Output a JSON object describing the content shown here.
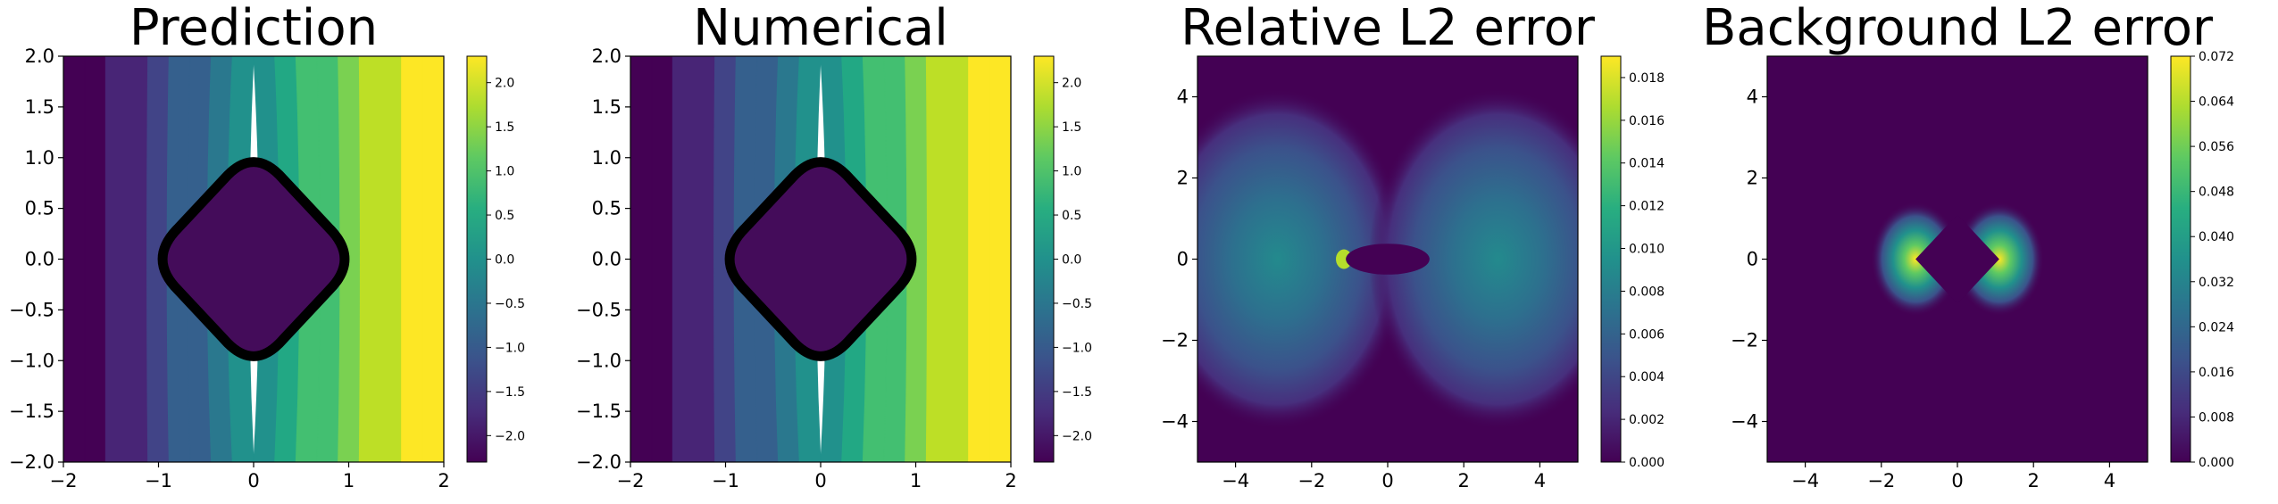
{
  "chart_data": [
    {
      "type": "heatmap",
      "title": "Prediction",
      "xlim": [
        -2,
        2
      ],
      "ylim": [
        -2,
        2
      ],
      "xticks": [
        -2,
        -1,
        0,
        1,
        2
      ],
      "yticks": [
        -2.0,
        -1.5,
        -1.0,
        -0.5,
        0.0,
        0.5,
        1.0,
        1.5,
        2.0
      ],
      "colormap": "viridis",
      "colorbar": {
        "range": [
          -2.3,
          2.3
        ],
        "ticks": [
          -2.0,
          -1.5,
          -1.0,
          -0.5,
          0.0,
          0.5,
          1.0,
          1.5,
          2.0
        ]
      },
      "field": "potential increasing left to right",
      "obstacle": {
        "shape": "rounded-diamond",
        "half_width": 1.1,
        "outline": "thick black"
      }
    },
    {
      "type": "heatmap",
      "title": "Numerical",
      "xlim": [
        -2,
        2
      ],
      "ylim": [
        -2,
        2
      ],
      "xticks": [
        -2,
        -1,
        0,
        1,
        2
      ],
      "yticks": [
        -2.0,
        -1.5,
        -1.0,
        -0.5,
        0.0,
        0.5,
        1.0,
        1.5,
        2.0
      ],
      "colormap": "viridis",
      "colorbar": {
        "range": [
          -2.3,
          2.3
        ],
        "ticks": [
          -2.0,
          -1.5,
          -1.0,
          -0.5,
          0.0,
          0.5,
          1.0,
          1.5,
          2.0
        ]
      },
      "field": "potential increasing left to right",
      "obstacle": {
        "shape": "rounded-diamond",
        "half_width": 1.1,
        "outline": "thick black"
      }
    },
    {
      "type": "heatmap",
      "title": "Relative L2 error",
      "xlim": [
        -5,
        5
      ],
      "ylim": [
        -5,
        5
      ],
      "xticks": [
        -4,
        -2,
        0,
        2,
        4
      ],
      "yticks": [
        -4,
        -2,
        0,
        2,
        4
      ],
      "colormap": "viridis",
      "colorbar": {
        "range": [
          0,
          0.019
        ],
        "ticks": [
          0.0,
          0.002,
          0.004,
          0.006,
          0.008,
          0.01,
          0.012,
          0.014,
          0.016,
          0.018
        ]
      },
      "field": "error lobes left and right of obstacle, peak at edges"
    },
    {
      "type": "heatmap",
      "title": "Background L2 error",
      "xlim": [
        -5,
        5
      ],
      "ylim": [
        -5,
        5
      ],
      "xticks": [
        -4,
        -2,
        0,
        2,
        4
      ],
      "yticks": [
        -4,
        -2,
        0,
        2,
        4
      ],
      "colormap": "viridis",
      "colorbar": {
        "range": [
          0,
          0.072
        ],
        "ticks": [
          0.0,
          0.008,
          0.016,
          0.024,
          0.032,
          0.04,
          0.048,
          0.056,
          0.064,
          0.072
        ]
      },
      "field": "error concentrated on left and right tips of obstacle"
    }
  ]
}
